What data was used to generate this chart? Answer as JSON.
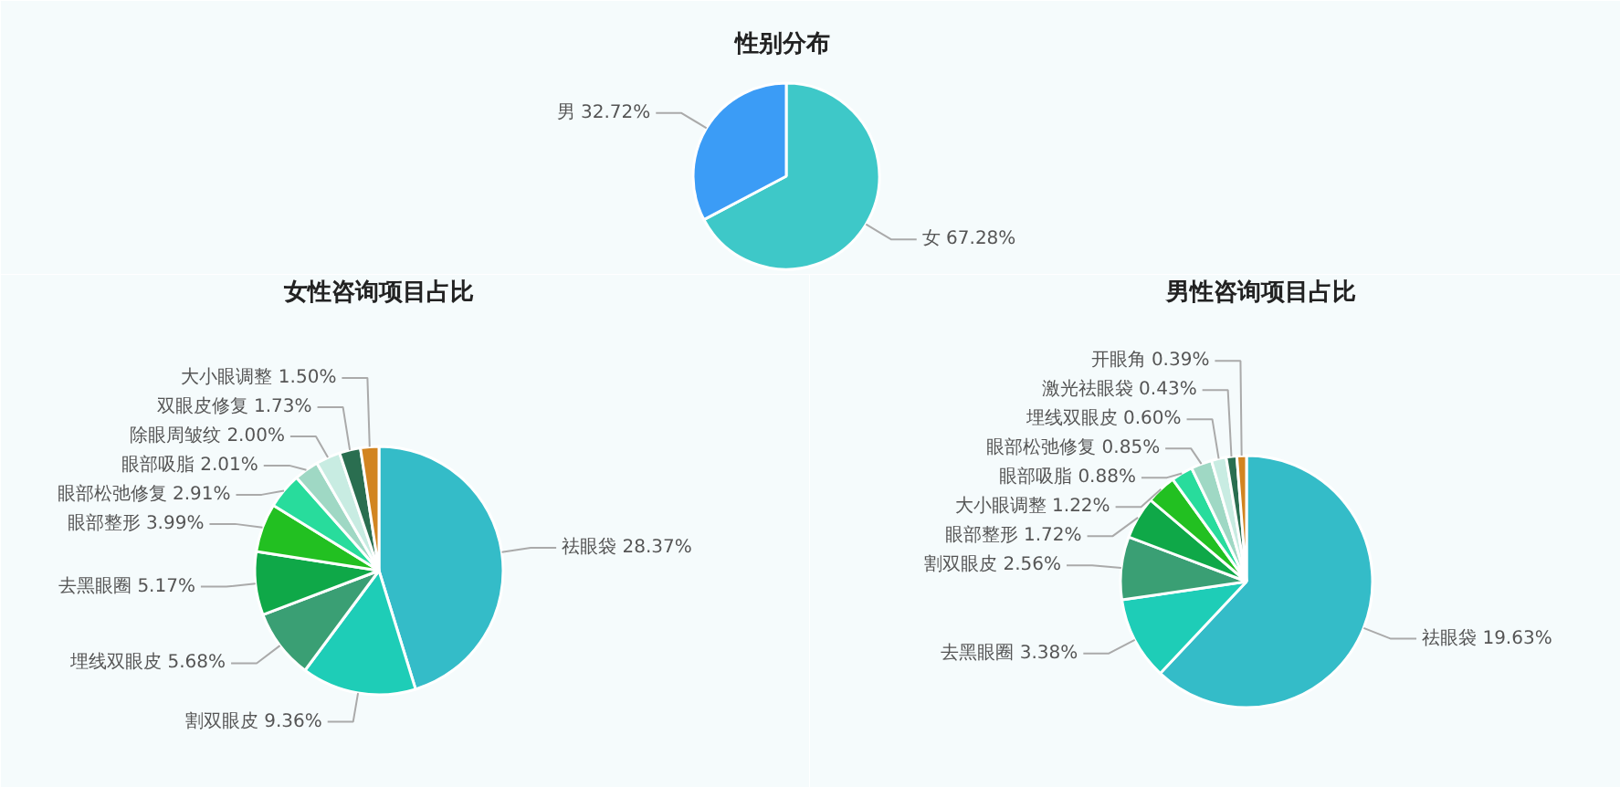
{
  "chart_data": [
    {
      "type": "pie",
      "title": "性别分布",
      "categories": [
        "女",
        "男"
      ],
      "values": [
        67.28,
        32.72
      ],
      "colors": [
        "#3ec8c8",
        "#3b9cf6"
      ],
      "value_labels": [
        "67.28%",
        "32.72%"
      ]
    },
    {
      "type": "pie",
      "title": "女性咨询项目占比",
      "categories": [
        "祛眼袋",
        "割双眼皮",
        "埋线双眼皮",
        "去黑眼圈",
        "眼部整形",
        "眼部松弛修复",
        "眼部吸脂",
        "除眼周皱纹",
        "双眼皮修复",
        "大小眼调整"
      ],
      "values": [
        28.37,
        9.36,
        5.68,
        5.17,
        3.99,
        2.91,
        2.01,
        2.0,
        1.73,
        1.5
      ],
      "colors": [
        "#34bcc8",
        "#1ecdb7",
        "#3a9f74",
        "#0fa848",
        "#22c021",
        "#28dc9c",
        "#9fd8c4",
        "#c8ece2",
        "#2a6e50",
        "#d28420"
      ],
      "value_labels": [
        "28.37%",
        "9.36%",
        "5.68%",
        "5.17%",
        "3.99%",
        "2.91%",
        "2.01%",
        "2.00%",
        "1.73%",
        "1.50%"
      ]
    },
    {
      "type": "pie",
      "title": "男性咨询项目占比",
      "categories": [
        "祛眼袋",
        "去黑眼圈",
        "割双眼皮",
        "眼部整形",
        "大小眼调整",
        "眼部吸脂",
        "眼部松弛修复",
        "埋线双眼皮",
        "激光祛眼袋",
        "开眼角"
      ],
      "values": [
        19.63,
        3.38,
        2.56,
        1.72,
        1.22,
        0.88,
        0.85,
        0.6,
        0.43,
        0.39
      ],
      "colors": [
        "#34bcc8",
        "#1ecdb7",
        "#3a9f74",
        "#0fa848",
        "#22c021",
        "#28dc9c",
        "#9fd8c4",
        "#c8ece2",
        "#2a6e50",
        "#d28420"
      ],
      "value_labels": [
        "19.63%",
        "3.38%",
        "2.56%",
        "1.72%",
        "1.22%",
        "0.88%",
        "0.85%",
        "0.60%",
        "0.43%",
        "0.39%"
      ]
    }
  ]
}
